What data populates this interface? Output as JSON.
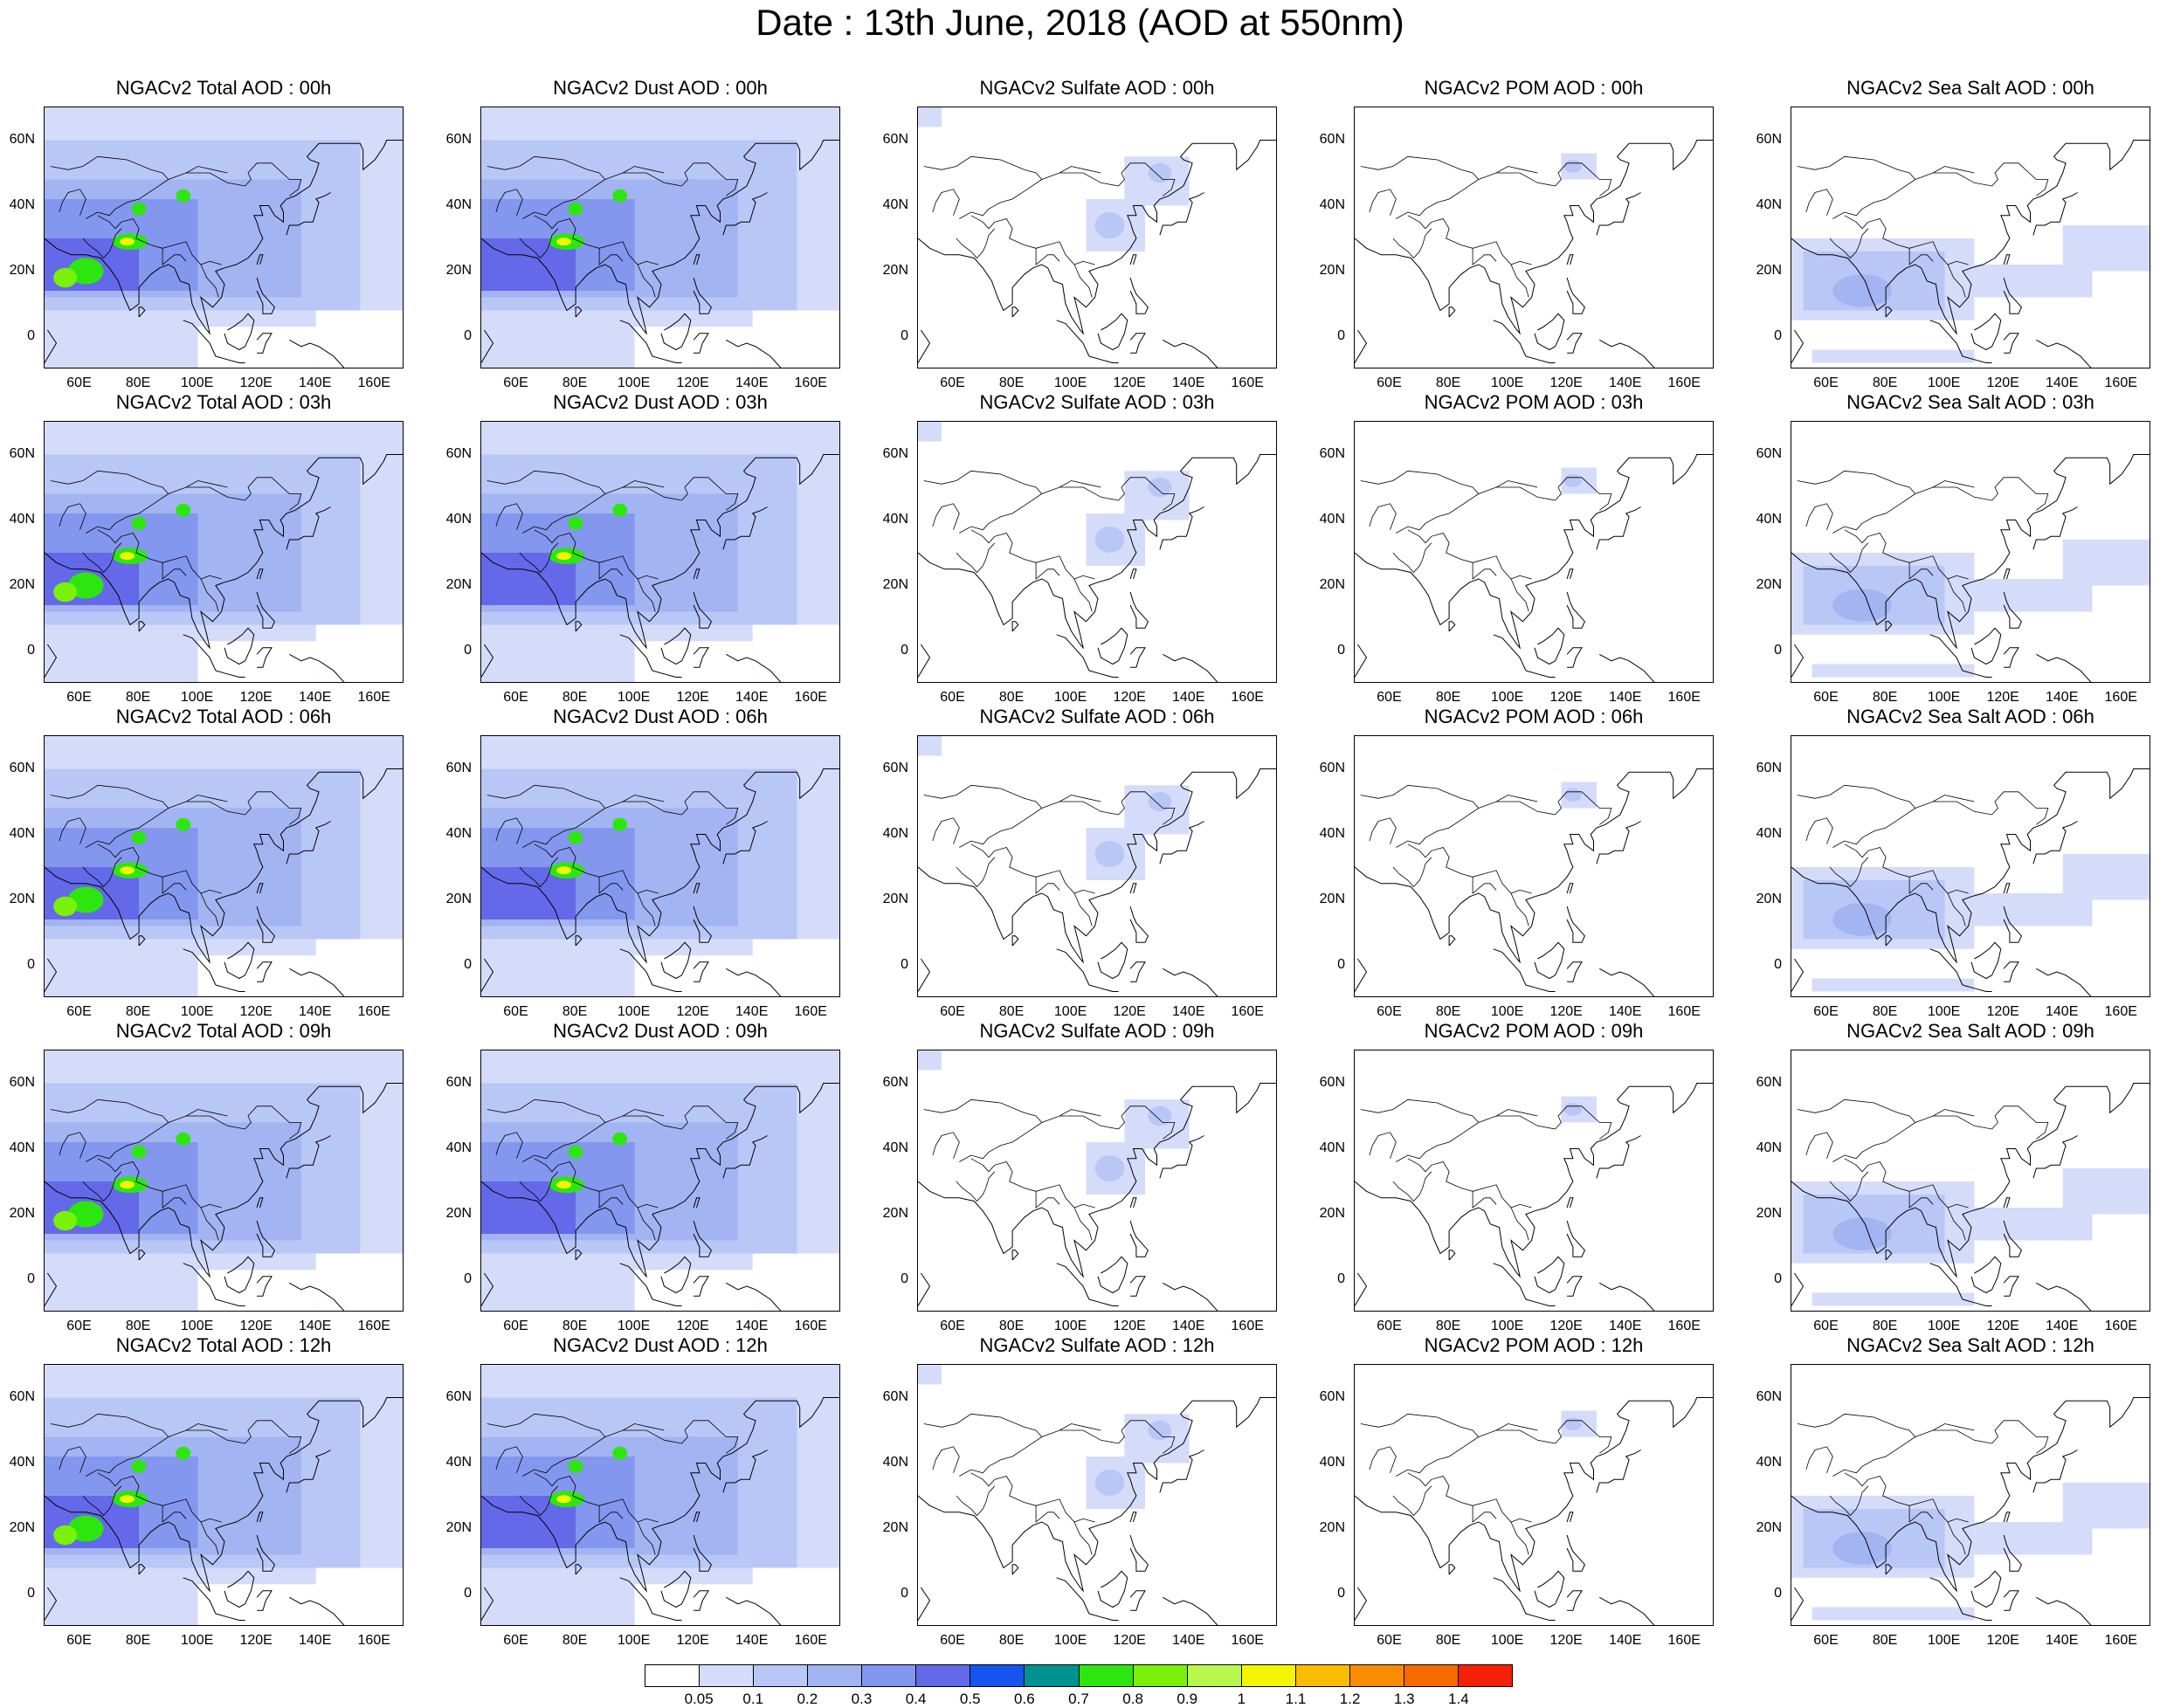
{
  "figure": {
    "title": "Date : 13th June, 2018 (AOD at 550nm)"
  },
  "map_axes": {
    "lon_ticks": [
      "60E",
      "80E",
      "100E",
      "120E",
      "140E",
      "160E"
    ],
    "lat_ticks": [
      "60N",
      "40N",
      "20N",
      "0"
    ],
    "lon_range": [
      48,
      170
    ],
    "lat_range": [
      -10,
      70
    ]
  },
  "rows": [
    {
      "hour": "00h",
      "titles": [
        "NGACv2 Total AOD : 00h",
        "NGACv2 Dust AOD : 00h",
        "NGACv2 Sulfate AOD : 00h",
        "NGACv2 POM AOD : 00h",
        "NGACv2 Sea Salt AOD : 00h"
      ]
    },
    {
      "hour": "03h",
      "titles": [
        "NGACv2 Total AOD : 03h",
        "NGACv2 Dust AOD : 03h",
        "NGACv2 Sulfate AOD : 03h",
        "NGACv2 POM AOD : 03h",
        "NGACv2 Sea Salt AOD : 03h"
      ]
    },
    {
      "hour": "06h",
      "titles": [
        "NGACv2 Total AOD : 06h",
        "NGACv2 Dust AOD : 06h",
        "NGACv2 Sulfate AOD : 06h",
        "NGACv2 POM AOD : 06h",
        "NGACv2 Sea Salt AOD : 06h"
      ]
    },
    {
      "hour": "09h",
      "titles": [
        "NGACv2 Total AOD : 09h",
        "NGACv2 Dust AOD : 09h",
        "NGACv2 Sulfate AOD : 09h",
        "NGACv2 POM AOD : 09h",
        "NGACv2 Sea Salt  AOD : 09h"
      ]
    },
    {
      "hour": "12h",
      "titles": [
        "NGACv2 Total AOD  : 12h",
        "NGACv2 Dust AOD : 12h",
        "NGACv2 Sulfate AOD : 12h",
        "NGACv2 POM  AOD : 12h",
        "NGACv2 Sea Salt  AOD : 12h"
      ]
    }
  ],
  "columns": [
    "total",
    "dust",
    "sulfate",
    "pom",
    "seasalt"
  ],
  "colorbar": {
    "labels": [
      "0.05",
      "0.1",
      "0.2",
      "0.3",
      "0.4",
      "0.5",
      "0.6",
      "0.7",
      "0.8",
      "0.9",
      "1",
      "1.1",
      "1.2",
      "1.3",
      "1.4"
    ],
    "colors": [
      "#ffffff",
      "#d4dcfa",
      "#b9c7f7",
      "#a2b4f2",
      "#8397ee",
      "#6369e8",
      "#1554ee",
      "#009191",
      "#2ee60f",
      "#79f109",
      "#b8f84c",
      "#f3f600",
      "#f9bc00",
      "#f98b00",
      "#f66a00",
      "#f61f08"
    ]
  },
  "field_colors": {
    "vlight": "#d4dcfa",
    "light": "#b9c7f7",
    "mid": "#a2b4f2",
    "dark": "#8397ee",
    "deep": "#6369e8",
    "green": "#2ee60f",
    "lgreen": "#79f109",
    "yellow": "#f3f600"
  }
}
